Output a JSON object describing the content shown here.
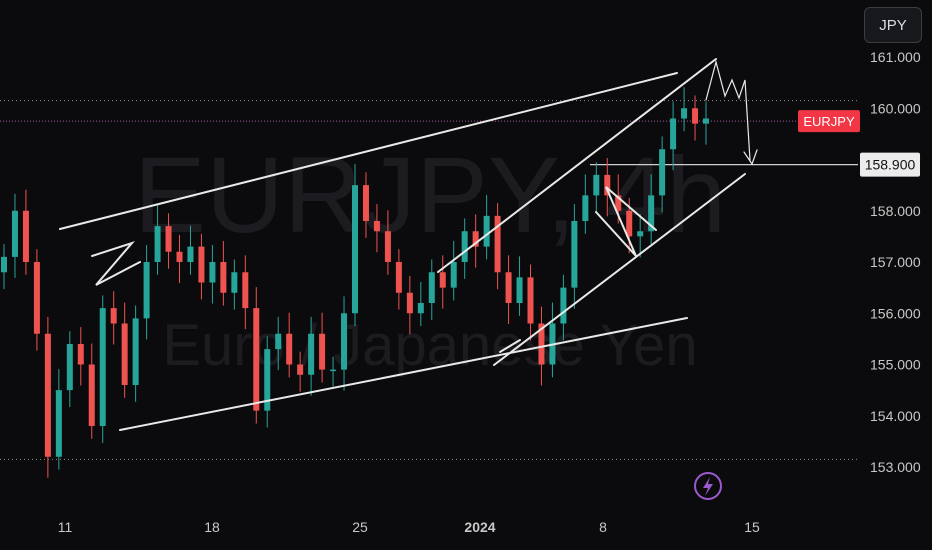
{
  "currency_button": "JPY",
  "watermark": {
    "symbol": "EURJPY, 4h",
    "name": "Euro / Japanese Yen"
  },
  "symbol_tag": {
    "label": "EURJPY",
    "color": "#f23645"
  },
  "price_tag": {
    "label": "158.900"
  },
  "colors": {
    "up": "#26a69a",
    "down": "#ef5350",
    "background": "#0b0b0d",
    "drawing": "#e9e9e9",
    "pricelines": "#8a8a8a"
  },
  "chart_data": {
    "type": "candlestick",
    "symbol": "EURJPY",
    "timeframe": "4h",
    "y_ticks": [
      "161.000",
      "160.000",
      "159.000",
      "158.000",
      "157.000",
      "156.000",
      "155.000",
      "154.000",
      "153.000"
    ],
    "x_ticks": [
      "11",
      "18",
      "25",
      "2024",
      "8",
      "15"
    ],
    "ylim": [
      152.8,
      161.2
    ],
    "current_price": 159.75,
    "marked_price": 158.9,
    "dotted_levels": [
      160.15,
      153.15
    ],
    "series": [
      {
        "name": "EURJPY",
        "x": 0,
        "values": [
          157.1,
          158.0,
          157.0,
          155.6,
          153.2,
          154.5,
          155.4,
          155.0,
          153.8,
          156.1,
          155.8,
          154.6,
          155.9,
          157.0,
          157.7,
          157.2,
          157.0,
          157.3,
          156.6,
          157.0,
          156.4,
          156.8,
          156.1,
          154.1,
          155.3,
          155.6,
          155.0,
          154.8,
          155.6,
          154.9,
          154.9,
          156.0,
          158.5,
          157.8,
          157.6,
          157.0,
          156.4,
          156.0,
          156.2,
          156.8,
          156.5,
          157.0,
          157.6,
          157.3,
          157.9,
          156.8,
          156.2,
          156.7,
          155.8,
          155.0,
          155.8,
          156.5,
          157.8,
          158.3,
          158.7,
          158.3,
          158.0,
          157.5,
          157.6,
          158.3,
          159.2,
          159.8,
          160.0,
          159.7,
          159.8
        ]
      }
    ],
    "drawings": [
      {
        "name": "upper-channel-line"
      },
      {
        "name": "lower-channel-line"
      },
      {
        "name": "rising-channel-top"
      },
      {
        "name": "rising-channel-bottom"
      },
      {
        "name": "flag-pattern"
      },
      {
        "name": "pullback-wedge"
      },
      {
        "name": "base-trendline"
      },
      {
        "name": "projection-path"
      }
    ]
  }
}
